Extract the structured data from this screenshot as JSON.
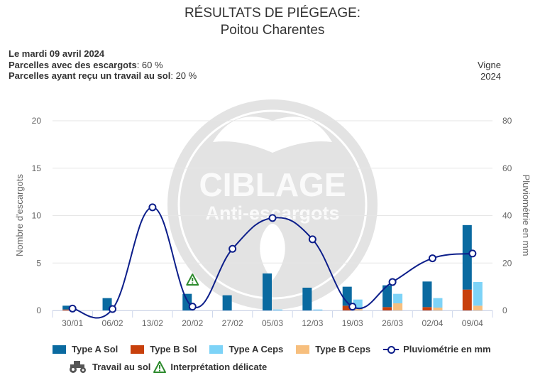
{
  "header": {
    "title": "RÉSULTATS DE PIÉGEAGE:",
    "region": "Poitou Charentes"
  },
  "info": {
    "date": "Le mardi 09 avril 2024",
    "parcelles_escargots_label": "Parcelles avec des escargots",
    "parcelles_escargots_value": ": 60 %",
    "parcelles_travail_label": "Parcelles ayant reçu un travail au sol",
    "parcelles_travail_value": ": 20 %"
  },
  "culture": {
    "name": "Vigne",
    "year": "2024"
  },
  "watermark": {
    "line1": "CIBLAGE",
    "line2": "Anti-escargots"
  },
  "colors": {
    "type_a_sol": "#0a6aa0",
    "type_b_sol": "#c8400c",
    "type_a_ceps": "#7dd3f7",
    "type_b_ceps": "#f7bf7e",
    "pluvio": "#0c1e8a",
    "warning": "#2e8b2e"
  },
  "chart_data": {
    "type": "bar",
    "categories": [
      "30/01",
      "06/02",
      "13/02",
      "20/02",
      "27/02",
      "05/03",
      "12/03",
      "19/03",
      "26/03",
      "02/04",
      "09/04"
    ],
    "series": [
      {
        "name": "Type A Sol",
        "stack": "sol",
        "values": [
          0.4,
          1.3,
          0,
          1.75,
          1.6,
          3.9,
          2.4,
          2.0,
          2.3,
          2.7,
          6.8
        ]
      },
      {
        "name": "Type B Sol",
        "stack": "sol",
        "values": [
          0.1,
          0,
          0,
          0,
          0,
          0,
          0,
          0.5,
          0.35,
          0.35,
          2.2
        ]
      },
      {
        "name": "Type A Ceps",
        "stack": "ceps",
        "values": [
          0,
          0,
          0,
          0,
          0,
          0.1,
          0.1,
          1.0,
          1.0,
          1.0,
          2.5
        ]
      },
      {
        "name": "Type B Ceps",
        "stack": "ceps",
        "values": [
          0,
          0,
          0,
          0,
          0,
          0,
          0,
          0.15,
          0.75,
          0.3,
          0.5
        ]
      }
    ],
    "line_series": {
      "name": "Pluviométrie en mm",
      "axis": "right",
      "values": [
        0.8,
        0.6,
        43.5,
        1.6,
        26,
        39,
        30,
        1.6,
        12,
        22,
        24
      ]
    },
    "annotations": [
      {
        "category": "20/02",
        "label": "Interprétation délicate"
      }
    ],
    "ylabel": "Nombre d'escargots",
    "ylabel_right": "Pluviométrie en mm",
    "ylim": [
      0,
      20
    ],
    "ylim_right": [
      0,
      80
    ],
    "yticks": [
      "0",
      "5",
      "10",
      "15",
      "20"
    ],
    "yticks_right": [
      "0",
      "20",
      "40",
      "60",
      "80"
    ],
    "grid": true,
    "legend_position": "bottom"
  },
  "legend": {
    "type_a_sol": "Type A Sol",
    "type_b_sol": "Type B Sol",
    "type_a_ceps": "Type A Ceps",
    "type_b_ceps": "Type B Ceps",
    "pluvio": "Pluviométrie en mm",
    "travail": "Travail au sol",
    "interpretation": "Interprétation délicate"
  }
}
